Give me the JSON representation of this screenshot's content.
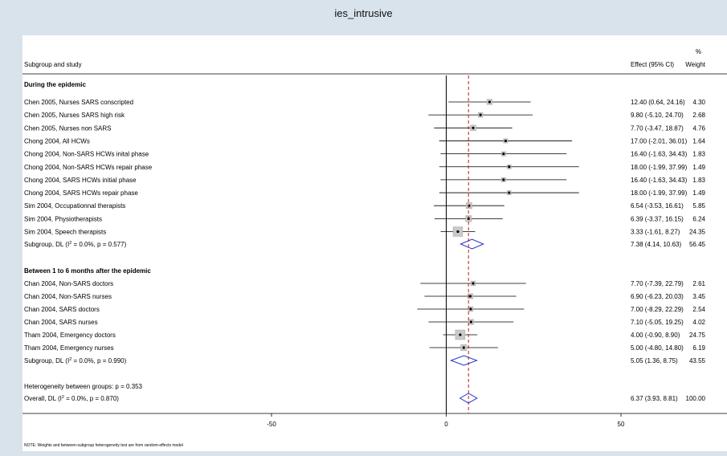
{
  "chart_data": {
    "type": "forest",
    "title": "ies_intrusive",
    "column_headers": {
      "study": "Subgroup and study",
      "effect": "Effect (95% CI)",
      "weight_top": "%",
      "weight_bottom": "Weight"
    },
    "x_axis": {
      "range": [
        -100,
        75
      ],
      "ticks": [
        -50,
        0,
        50
      ],
      "tick_labels": [
        "-50",
        "0",
        "50"
      ],
      "reference_line": 0,
      "overall_line": 6.37
    },
    "groups": [
      {
        "name": "During the epidemic",
        "studies": [
          {
            "label": "Chen 2005, Nurses SARS conscripted",
            "effect": 12.4,
            "lower": 0.64,
            "upper": 24.16,
            "ci_text": "12.40 (0.64, 24.16)",
            "weight": "4.30",
            "w": 4.3
          },
          {
            "label": "Chen 2005, Nurses SARS high risk",
            "effect": 9.8,
            "lower": -5.1,
            "upper": 24.7,
            "ci_text": "9.80 (-5.10, 24.70)",
            "weight": "2.68",
            "w": 2.68
          },
          {
            "label": "Chen 2005, Nurses non SARS",
            "effect": 7.7,
            "lower": -3.47,
            "upper": 18.87,
            "ci_text": "7.70 (-3.47, 18.87)",
            "weight": "4.76",
            "w": 4.76
          },
          {
            "label": "Chong 2004, All HCWs",
            "effect": 17.0,
            "lower": -2.01,
            "upper": 36.01,
            "ci_text": "17.00 (-2.01, 36.01)",
            "weight": "1.64",
            "w": 1.64
          },
          {
            "label": "Chong 2004, Non-SARS HCWs inital phase",
            "effect": 16.4,
            "lower": -1.63,
            "upper": 34.43,
            "ci_text": "16.40 (-1.63, 34.43)",
            "weight": "1.83",
            "w": 1.83
          },
          {
            "label": "Chong 2004, Non-SARS HCWs repair phase",
            "effect": 18.0,
            "lower": -1.99,
            "upper": 37.99,
            "ci_text": "18.00 (-1.99, 37.99)",
            "weight": "1.49",
            "w": 1.49
          },
          {
            "label": "Chong 2004, SARS HCWs initial phase",
            "effect": 16.4,
            "lower": -1.63,
            "upper": 34.43,
            "ci_text": "16.40 (-1.63, 34.43)",
            "weight": "1.83",
            "w": 1.83
          },
          {
            "label": "Chong 2004, SARS HCWs repair phase",
            "effect": 18.0,
            "lower": -1.99,
            "upper": 37.99,
            "ci_text": "18.00 (-1.99, 37.99)",
            "weight": "1.49",
            "w": 1.49
          },
          {
            "label": "Sim 2004, Occupationnal therapists",
            "effect": 6.54,
            "lower": -3.53,
            "upper": 16.61,
            "ci_text": "6.54 (-3.53, 16.61)",
            "weight": "5.85",
            "w": 5.85
          },
          {
            "label": "Sim 2004, Physiotherapists",
            "effect": 6.39,
            "lower": -3.37,
            "upper": 16.15,
            "ci_text": "6.39 (-3.37, 16.15)",
            "weight": "6.24",
            "w": 6.24
          },
          {
            "label": "Sim 2004, Speech therapists",
            "effect": 3.33,
            "lower": -1.61,
            "upper": 8.27,
            "ci_text": "3.33 (-1.61, 8.27)",
            "weight": "24.35",
            "w": 24.35
          }
        ],
        "subgroup": {
          "label_prefix": "Subgroup, DL (I",
          "label_suffix": " = 0.0%, p = 0.577)",
          "effect": 7.38,
          "lower": 4.14,
          "upper": 10.63,
          "ci_text": "7.38 (4.14, 10.63)",
          "weight": "56.45"
        }
      },
      {
        "name": "Between 1 to 6 months after the epidemic",
        "studies": [
          {
            "label": "Chan 2004, Non-SARS doctors",
            "effect": 7.7,
            "lower": -7.39,
            "upper": 22.79,
            "ci_text": "7.70 (-7.39, 22.79)",
            "weight": "2.61",
            "w": 2.61
          },
          {
            "label": "Chan 2004, Non-SARS nurses",
            "effect": 6.9,
            "lower": -6.23,
            "upper": 20.03,
            "ci_text": "6.90 (-6.23, 20.03)",
            "weight": "3.45",
            "w": 3.45
          },
          {
            "label": "Chan 2004, SARS doctors",
            "effect": 7.0,
            "lower": -8.29,
            "upper": 22.29,
            "ci_text": "7.00 (-8.29, 22.29)",
            "weight": "2.54",
            "w": 2.54
          },
          {
            "label": "Chan 2004, SARS nurses",
            "effect": 7.1,
            "lower": -5.05,
            "upper": 19.25,
            "ci_text": "7.10 (-5.05, 19.25)",
            "weight": "4.02",
            "w": 4.02
          },
          {
            "label": "Tham 2004, Emergency doctors",
            "effect": 4.0,
            "lower": -0.9,
            "upper": 8.9,
            "ci_text": "4.00 (-0.90, 8.90)",
            "weight": "24.75",
            "w": 24.75
          },
          {
            "label": "Tham 2004, Emergency nurses",
            "effect": 5.0,
            "lower": -4.8,
            "upper": 14.8,
            "ci_text": "5.00 (-4.80, 14.80)",
            "weight": "6.19",
            "w": 6.19
          }
        ],
        "subgroup": {
          "label_prefix": "Subgroup, DL (I",
          "label_suffix": " = 0.0%, p = 0.990)",
          "effect": 5.05,
          "lower": 1.36,
          "upper": 8.75,
          "ci_text": "5.05 (1.36, 8.75)",
          "weight": "43.55"
        }
      }
    ],
    "heterogeneity_text": "Heterogeneity between groups: p = 0.353",
    "overall": {
      "label_prefix": "Overall, DL (I",
      "label_suffix": " = 0.0%, p = 0.870)",
      "effect": 6.37,
      "lower": 3.93,
      "upper": 8.81,
      "ci_text": "6.37 (3.93, 8.81)",
      "weight": "100.00"
    },
    "note": "NOTE: Weights and between-subgroup heterogeneity test are from random-effects model",
    "superscript": "2",
    "colors": {
      "diamond": "#2233cc",
      "overall_line": "#b22222",
      "background": "#d9e3ec",
      "panel": "#ffffff"
    }
  }
}
